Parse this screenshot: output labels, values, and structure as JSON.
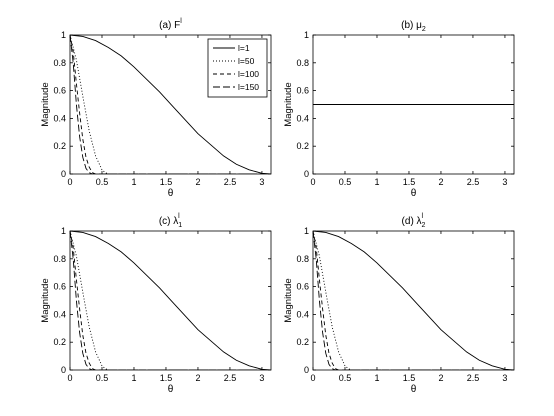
{
  "chart_data": [
    {
      "type": "line",
      "title": "(a) F",
      "title_sup": "l",
      "xlabel": "θ",
      "ylabel": "Magnitude",
      "xlim": [
        0,
        3.1416
      ],
      "ylim": [
        0,
        1
      ],
      "xticks": [
        "0",
        "0.5",
        "1",
        "1.5",
        "2",
        "2.5",
        "3"
      ],
      "yticks": [
        "0",
        "0.2",
        "0.4",
        "0.6",
        "0.8",
        "1"
      ],
      "legend": {
        "position": "top-right",
        "entries": [
          "l=1",
          "l=50",
          "l=100",
          "l=150"
        ]
      },
      "series": [
        {
          "name": "l=1",
          "style": "solid",
          "x": [
            0,
            0.2,
            0.4,
            0.6,
            0.8,
            1.0,
            1.2,
            1.4,
            1.6,
            1.8,
            2.0,
            2.2,
            2.4,
            2.6,
            2.8,
            3.0,
            3.1416
          ],
          "y": [
            1.0,
            0.99,
            0.96,
            0.91,
            0.85,
            0.77,
            0.68,
            0.59,
            0.49,
            0.39,
            0.29,
            0.21,
            0.13,
            0.07,
            0.03,
            0.005,
            0.0
          ]
        },
        {
          "name": "l=50",
          "style": "dotted",
          "x": [
            0,
            0.1,
            0.2,
            0.3,
            0.4,
            0.5,
            0.55,
            0.6,
            3.1416
          ],
          "y": [
            1.0,
            0.82,
            0.56,
            0.31,
            0.13,
            0.03,
            0.01,
            0.0,
            0.0
          ]
        },
        {
          "name": "l=100",
          "style": "dashed",
          "x": [
            0,
            0.05,
            0.1,
            0.15,
            0.2,
            0.25,
            0.3,
            0.35,
            0.4,
            3.1416
          ],
          "y": [
            1.0,
            0.88,
            0.65,
            0.44,
            0.25,
            0.12,
            0.05,
            0.01,
            0.0,
            0.0
          ]
        },
        {
          "name": "l=150",
          "style": "longdash",
          "x": [
            0,
            0.05,
            0.1,
            0.15,
            0.2,
            0.25,
            0.3,
            0.35,
            3.1416
          ],
          "y": [
            1.0,
            0.8,
            0.5,
            0.27,
            0.12,
            0.04,
            0.01,
            0.0,
            0.0
          ]
        }
      ]
    },
    {
      "type": "line",
      "title": "(b) μ",
      "title_sub": "2",
      "xlabel": "θ",
      "ylabel": "Magnitude",
      "xlim": [
        0,
        3.1416
      ],
      "ylim": [
        0,
        1
      ],
      "xticks": [
        "0",
        "0.5",
        "1",
        "1.5",
        "2",
        "2.5",
        "3"
      ],
      "yticks": [
        "0",
        "0.2",
        "0.4",
        "0.6",
        "0.8",
        "1"
      ],
      "series": [
        {
          "style": "solid",
          "x": [
            0,
            3.1416
          ],
          "y": [
            0.5,
            0.5
          ]
        }
      ]
    },
    {
      "type": "line",
      "title": "(c) λ",
      "title_sub": "1",
      "title_sup": "l",
      "xlabel": "θ",
      "ylabel": "Magnitude",
      "xlim": [
        0,
        3.1416
      ],
      "ylim": [
        0,
        1
      ],
      "xticks": [
        "0",
        "0.5",
        "1",
        "1.5",
        "2",
        "2.5",
        "3"
      ],
      "yticks": [
        "0",
        "0.2",
        "0.4",
        "0.6",
        "0.8",
        "1"
      ],
      "series": [
        {
          "style": "solid",
          "x": [
            0,
            0.2,
            0.4,
            0.6,
            0.8,
            1.0,
            1.2,
            1.4,
            1.6,
            1.8,
            2.0,
            2.2,
            2.4,
            2.6,
            2.8,
            3.0,
            3.1416
          ],
          "y": [
            1.0,
            0.99,
            0.96,
            0.91,
            0.85,
            0.77,
            0.68,
            0.59,
            0.49,
            0.39,
            0.29,
            0.21,
            0.13,
            0.07,
            0.03,
            0.005,
            0.0
          ]
        },
        {
          "style": "dotted",
          "x": [
            0,
            0.1,
            0.2,
            0.3,
            0.4,
            0.5,
            0.55,
            0.6,
            3.1416
          ],
          "y": [
            1.0,
            0.82,
            0.56,
            0.31,
            0.13,
            0.03,
            0.01,
            0.0,
            0.0
          ]
        },
        {
          "style": "dashed",
          "x": [
            0,
            0.05,
            0.1,
            0.15,
            0.2,
            0.25,
            0.3,
            0.35,
            0.4,
            3.1416
          ],
          "y": [
            1.0,
            0.88,
            0.65,
            0.44,
            0.25,
            0.12,
            0.05,
            0.01,
            0.0,
            0.0
          ]
        },
        {
          "style": "longdash",
          "x": [
            0,
            0.05,
            0.1,
            0.15,
            0.2,
            0.25,
            0.3,
            0.35,
            3.1416
          ],
          "y": [
            1.0,
            0.8,
            0.5,
            0.27,
            0.12,
            0.04,
            0.01,
            0.0,
            0.0
          ]
        }
      ]
    },
    {
      "type": "line",
      "title": "(d) λ",
      "title_sub": "2",
      "title_sup": "l",
      "xlabel": "θ",
      "ylabel": "Magnitude",
      "xlim": [
        0,
        3.1416
      ],
      "ylim": [
        0,
        1
      ],
      "xticks": [
        "0",
        "0.5",
        "1",
        "1.5",
        "2",
        "2.5",
        "3"
      ],
      "yticks": [
        "0",
        "0.2",
        "0.4",
        "0.6",
        "0.8",
        "1"
      ],
      "series": [
        {
          "style": "solid",
          "x": [
            0,
            0.2,
            0.4,
            0.6,
            0.8,
            1.0,
            1.2,
            1.4,
            1.6,
            1.8,
            2.0,
            2.2,
            2.4,
            2.6,
            2.8,
            3.0,
            3.1416
          ],
          "y": [
            1.0,
            0.99,
            0.96,
            0.91,
            0.85,
            0.77,
            0.68,
            0.59,
            0.49,
            0.39,
            0.29,
            0.21,
            0.13,
            0.07,
            0.03,
            0.005,
            0.0
          ]
        },
        {
          "style": "dotted",
          "x": [
            0,
            0.1,
            0.2,
            0.3,
            0.4,
            0.5,
            0.55,
            0.6,
            3.1416
          ],
          "y": [
            1.0,
            0.82,
            0.56,
            0.31,
            0.13,
            0.03,
            0.01,
            0.0,
            0.0
          ]
        },
        {
          "style": "dashed",
          "x": [
            0,
            0.05,
            0.1,
            0.15,
            0.2,
            0.25,
            0.3,
            0.35,
            0.4,
            3.1416
          ],
          "y": [
            1.0,
            0.88,
            0.65,
            0.44,
            0.25,
            0.12,
            0.05,
            0.01,
            0.0,
            0.0
          ]
        },
        {
          "style": "longdash",
          "x": [
            0,
            0.05,
            0.1,
            0.15,
            0.2,
            0.25,
            0.3,
            0.35,
            3.1416
          ],
          "y": [
            1.0,
            0.8,
            0.5,
            0.27,
            0.12,
            0.04,
            0.01,
            0.0,
            0.0
          ]
        }
      ]
    }
  ]
}
